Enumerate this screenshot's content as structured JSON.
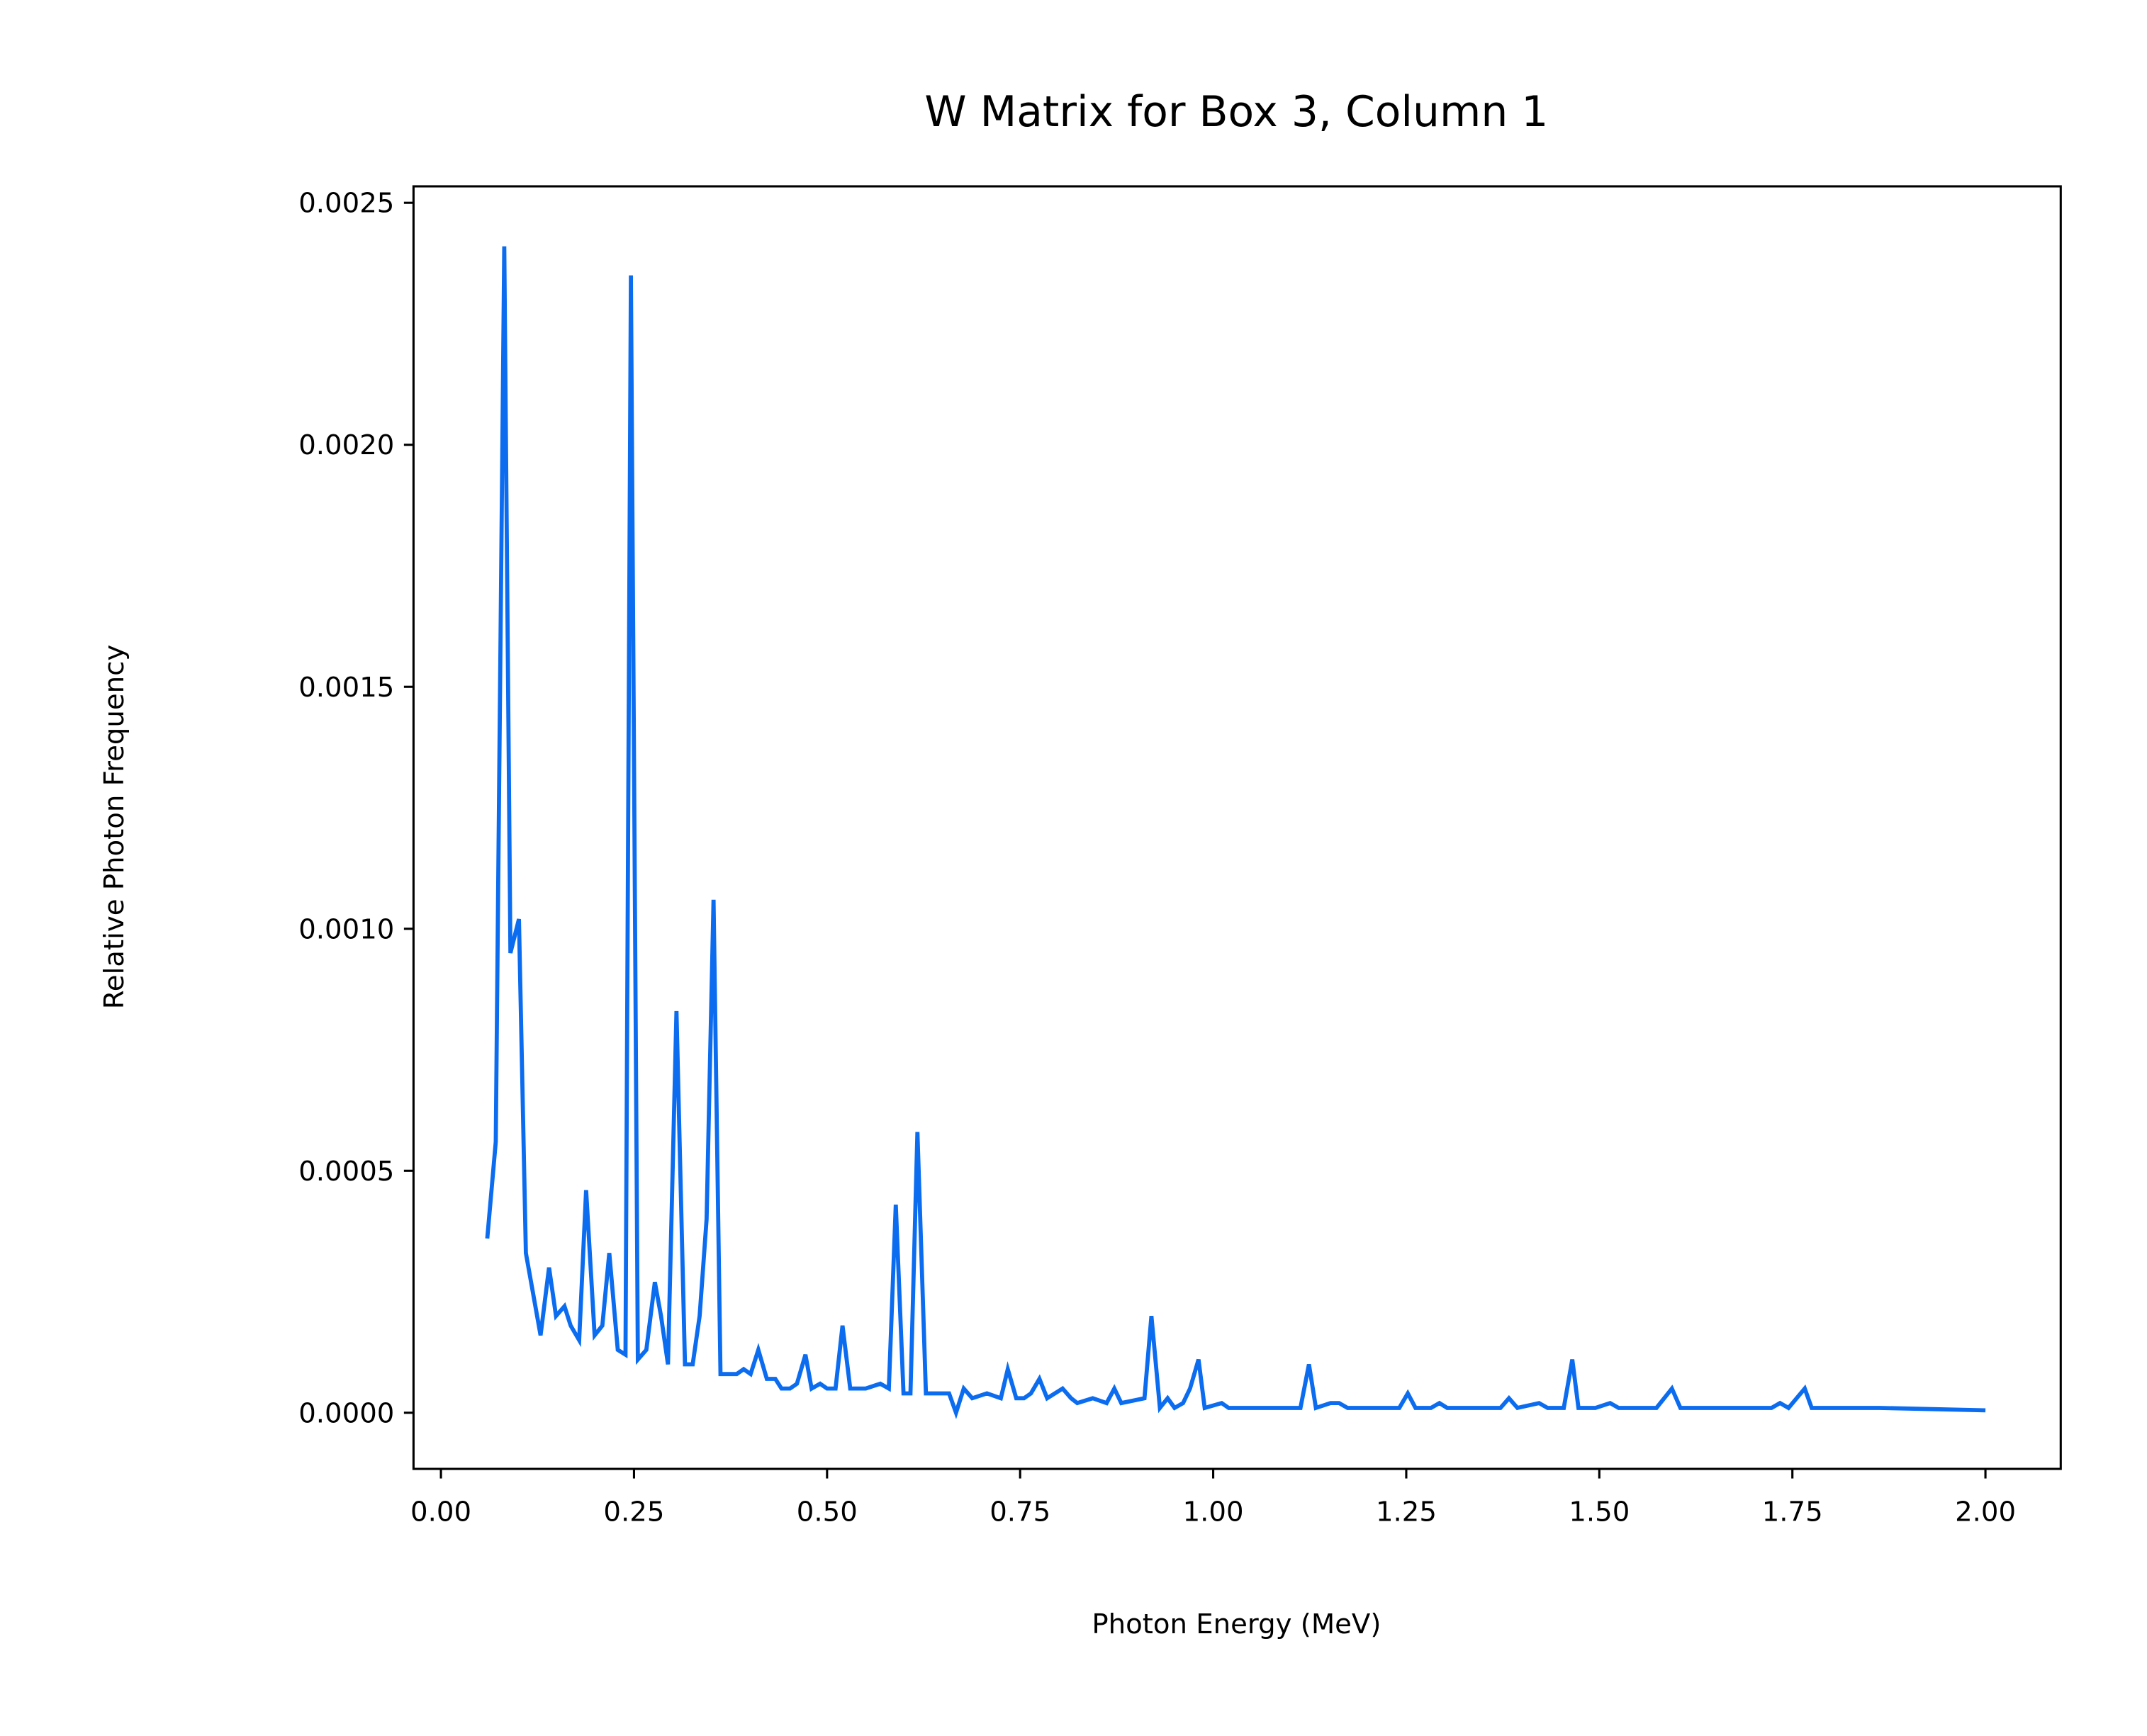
{
  "chart_data": {
    "type": "line",
    "title": "W Matrix for Box 3, Column 1",
    "x_label": "Photon Energy (MeV)",
    "y_label": "Relative Photon Frequency",
    "xlim": [
      -0.0355,
      2.0975
    ],
    "ylim": [
      -0.000116,
      0.002534
    ],
    "xticks": [
      {
        "value": 0,
        "label": "0.00"
      },
      {
        "value": 0.25,
        "label": "0.25"
      },
      {
        "value": 0.5,
        "label": "0.50"
      },
      {
        "value": 0.75,
        "label": "0.75"
      },
      {
        "value": 1,
        "label": "1.00"
      },
      {
        "value": 1.25,
        "label": "1.25"
      },
      {
        "value": 1.5,
        "label": "1.50"
      },
      {
        "value": 1.75,
        "label": "1.75"
      },
      {
        "value": 2,
        "label": "2.00"
      }
    ],
    "yticks": [
      {
        "value": 0,
        "label": "0.0000"
      },
      {
        "value": 0.0005,
        "label": "0.0005"
      },
      {
        "value": 0.001,
        "label": "0.0010"
      },
      {
        "value": 0.0015,
        "label": "0.0015"
      },
      {
        "value": 0.002,
        "label": "0.0020"
      },
      {
        "value": 0.0025,
        "label": "0.0025"
      }
    ],
    "grid": false,
    "x": [
      0.06,
      0.071,
      0.082,
      0.09,
      0.101,
      0.11,
      0.129,
      0.14,
      0.149,
      0.16,
      0.168,
      0.179,
      0.188,
      0.199,
      0.209,
      0.218,
      0.229,
      0.239,
      0.246,
      0.255,
      0.266,
      0.277,
      0.285,
      0.294,
      0.305,
      0.316,
      0.326,
      0.335,
      0.344,
      0.353,
      0.362,
      0.383,
      0.392,
      0.401,
      0.411,
      0.422,
      0.433,
      0.441,
      0.452,
      0.461,
      0.472,
      0.48,
      0.491,
      0.5,
      0.511,
      0.52,
      0.53,
      0.55,
      0.569,
      0.58,
      0.589,
      0.599,
      0.608,
      0.617,
      0.628,
      0.658,
      0.667,
      0.677,
      0.688,
      0.707,
      0.725,
      0.734,
      0.745,
      0.755,
      0.764,
      0.775,
      0.785,
      0.805,
      0.816,
      0.824,
      0.844,
      0.862,
      0.872,
      0.881,
      0.911,
      0.92,
      0.931,
      0.941,
      0.95,
      0.961,
      0.97,
      0.981,
      0.989,
      1.011,
      1.02,
      1.113,
      1.124,
      1.133,
      1.152,
      1.163,
      1.174,
      1.241,
      1.252,
      1.262,
      1.282,
      1.293,
      1.303,
      1.372,
      1.383,
      1.394,
      1.422,
      1.433,
      1.454,
      1.465,
      1.473,
      1.495,
      1.514,
      1.525,
      1.574,
      1.594,
      1.605,
      1.635,
      1.654,
      1.723,
      1.734,
      1.745,
      1.766,
      1.775,
      1.844,
      1.855,
      1.863,
      2.0
    ],
    "series": [
      {
        "name": "W",
        "color": "#0b6cf0",
        "values": [
          0.00036,
          0.00056,
          0.00241,
          0.00095,
          0.00102,
          0.00033,
          0.00016,
          0.0003,
          0.0002,
          0.00022,
          0.00018,
          0.00015,
          0.00046,
          0.00016,
          0.00018,
          0.00033,
          0.00013,
          0.00012,
          0.00235,
          0.00011,
          0.00013,
          0.00027,
          0.0002,
          0.0001,
          0.00083,
          0.0001,
          0.0001,
          0.0002,
          0.0004,
          0.00106,
          8e-05,
          8e-05,
          9e-05,
          8e-05,
          0.00013,
          7e-05,
          7e-05,
          5e-05,
          5e-05,
          6e-05,
          0.00012,
          5e-05,
          6e-05,
          5e-05,
          5e-05,
          0.00018,
          5e-05,
          5e-05,
          6e-05,
          5e-05,
          0.00043,
          4e-05,
          4e-05,
          0.00058,
          4e-05,
          4e-05,
          0.0,
          5e-05,
          3e-05,
          4e-05,
          3e-05,
          9e-05,
          3e-05,
          3e-05,
          4e-05,
          7e-05,
          3e-05,
          5e-05,
          3e-05,
          2e-05,
          3e-05,
          2e-05,
          5e-05,
          2e-05,
          3e-05,
          0.0002,
          1e-05,
          3e-05,
          1e-05,
          2e-05,
          5e-05,
          0.00011,
          1e-05,
          2e-05,
          1e-05,
          1e-05,
          0.0001,
          1e-05,
          2e-05,
          2e-05,
          1e-05,
          1e-05,
          4e-05,
          1e-05,
          1e-05,
          2e-05,
          1e-05,
          1e-05,
          3e-05,
          1e-05,
          2e-05,
          1e-05,
          1e-05,
          0.00011,
          1e-05,
          1e-05,
          2e-05,
          1e-05,
          1e-05,
          5e-05,
          1e-05,
          1e-05,
          1e-05,
          1e-05,
          2e-05,
          1e-05,
          5e-05,
          1e-05,
          1e-05,
          1e-05,
          1e-05,
          5e-06
        ]
      }
    ]
  }
}
